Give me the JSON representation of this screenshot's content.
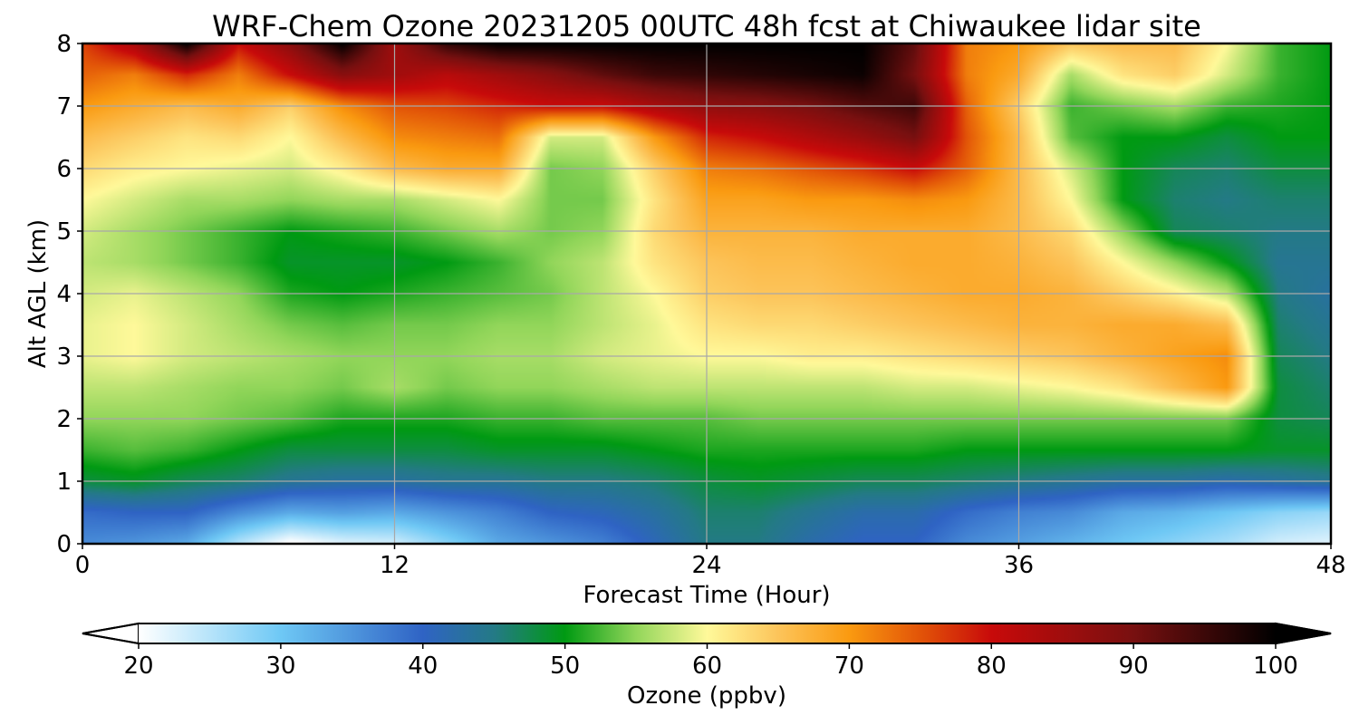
{
  "chart_data": {
    "type": "heatmap",
    "title": "WRF-Chem Ozone  20231205 00UTC 48h fcst at Chiwaukee lidar site",
    "xlabel": "Forecast Time (Hour)",
    "ylabel": "Alt AGL (km)",
    "xlim": [
      0,
      48
    ],
    "ylim": [
      0,
      8
    ],
    "xticks": [
      0,
      12,
      24,
      36,
      48
    ],
    "yticks": [
      0,
      1,
      2,
      3,
      4,
      5,
      6,
      7,
      8
    ],
    "grid": true,
    "colorbar": {
      "label": "Ozone  (ppbv)",
      "range": [
        20,
        100
      ],
      "ticks": [
        20,
        30,
        40,
        50,
        60,
        70,
        80,
        90,
        100
      ],
      "extend": "both",
      "orientation": "horizontal",
      "placement": "bottom",
      "colors": [
        {
          "v": 20,
          "c": "#ffffff"
        },
        {
          "v": 30,
          "c": "#6ec8f5"
        },
        {
          "v": 40,
          "c": "#2f63c4"
        },
        {
          "v": 45,
          "c": "#247a86"
        },
        {
          "v": 50,
          "c": "#009a12"
        },
        {
          "v": 55,
          "c": "#92d65a"
        },
        {
          "v": 60,
          "c": "#fff99a"
        },
        {
          "v": 65,
          "c": "#fcc45a"
        },
        {
          "v": 70,
          "c": "#fa9a10"
        },
        {
          "v": 75,
          "c": "#e25408"
        },
        {
          "v": 80,
          "c": "#c80a0a"
        },
        {
          "v": 90,
          "c": "#781010"
        },
        {
          "v": 100,
          "c": "#000000"
        }
      ]
    },
    "x": [
      0,
      2,
      4,
      6,
      8,
      10,
      12,
      14,
      16,
      18,
      20,
      22,
      24,
      26,
      28,
      30,
      32,
      34,
      36,
      38,
      40,
      42,
      44,
      46,
      48
    ],
    "y": [
      0,
      0.5,
      1,
      1.5,
      2,
      2.5,
      3,
      3.5,
      4,
      4.5,
      5,
      5.5,
      6,
      6.5,
      7,
      7.5,
      8
    ],
    "z": [
      [
        36,
        35,
        33,
        25,
        19,
        22,
        23,
        28,
        33,
        35,
        37,
        41,
        45,
        45,
        42,
        40,
        40,
        36,
        34,
        32,
        30,
        28,
        26,
        23,
        22
      ],
      [
        39,
        40,
        40,
        36,
        33,
        34,
        33,
        35,
        37,
        40,
        41,
        43,
        46,
        46,
        44,
        42,
        42,
        39,
        37,
        36,
        33,
        32,
        30,
        28,
        27
      ],
      [
        48,
        49,
        47,
        46,
        44,
        43,
        43,
        44,
        44,
        45,
        45,
        46,
        48,
        49,
        48,
        47,
        47,
        46,
        45,
        44,
        43,
        43,
        42,
        43,
        44
      ],
      [
        52,
        53,
        52,
        50,
        48,
        48,
        48,
        48,
        49,
        49,
        49,
        50,
        51,
        51,
        51,
        51,
        51,
        50,
        50,
        50,
        50,
        50,
        50,
        49,
        49
      ],
      [
        55,
        55,
        55,
        54,
        53,
        51,
        51,
        51,
        52,
        52,
        53,
        53,
        53,
        54,
        54,
        54,
        54,
        54,
        54,
        54,
        54,
        54,
        54,
        48,
        47
      ],
      [
        57,
        57,
        56,
        55,
        55,
        54,
        56,
        54,
        55,
        55,
        56,
        57,
        57,
        57,
        57,
        57,
        58,
        58,
        59,
        60,
        62,
        66,
        70,
        48,
        46
      ],
      [
        59,
        60,
        58,
        57,
        56,
        55,
        55,
        55,
        56,
        56,
        58,
        59,
        60,
        60,
        61,
        61,
        62,
        63,
        64,
        65,
        67,
        69,
        71,
        47,
        45
      ],
      [
        59,
        60,
        58,
        56,
        54,
        53,
        54,
        54,
        55,
        55,
        57,
        59,
        62,
        63,
        63,
        64,
        65,
        66,
        67,
        67,
        68,
        68,
        66,
        46,
        44
      ],
      [
        58,
        59,
        57,
        55,
        51,
        50,
        51,
        52,
        53,
        54,
        57,
        60,
        64,
        65,
        65,
        66,
        67,
        68,
        68,
        67,
        64,
        61,
        57,
        45,
        43
      ],
      [
        57,
        56,
        54,
        52,
        49,
        49,
        49,
        50,
        52,
        55,
        57,
        62,
        65,
        66,
        66,
        67,
        68,
        68,
        67,
        65,
        60,
        55,
        50,
        44,
        44
      ],
      [
        58,
        56,
        54,
        52,
        50,
        51,
        52,
        54,
        56,
        54,
        55,
        63,
        67,
        67,
        67,
        68,
        68,
        68,
        66,
        63,
        55,
        47,
        46,
        45,
        45
      ],
      [
        60,
        58,
        56,
        56,
        55,
        56,
        56,
        58,
        60,
        54,
        54,
        62,
        69,
        69,
        70,
        70,
        71,
        70,
        66,
        60,
        50,
        46,
        45,
        46,
        46
      ],
      [
        63,
        61,
        60,
        59,
        58,
        61,
        66,
        68,
        68,
        54,
        55,
        64,
        72,
        73,
        75,
        77,
        80,
        74,
        66,
        58,
        50,
        47,
        46,
        48,
        48
      ],
      [
        66,
        64,
        62,
        63,
        60,
        66,
        71,
        72,
        73,
        58,
        58,
        70,
        78,
        80,
        83,
        86,
        90,
        75,
        66,
        53,
        50,
        50,
        48,
        50,
        50
      ],
      [
        70,
        68,
        66,
        68,
        64,
        71,
        75,
        76,
        78,
        80,
        80,
        84,
        87,
        88,
        90,
        93,
        95,
        74,
        64,
        52,
        54,
        56,
        52,
        51,
        50
      ],
      [
        74,
        72,
        78,
        72,
        80,
        88,
        85,
        82,
        85,
        88,
        92,
        95,
        96,
        97,
        98,
        99,
        90,
        72,
        68,
        56,
        62,
        64,
        58,
        52,
        50
      ],
      [
        76,
        84,
        100,
        80,
        88,
        100,
        85,
        96,
        100,
        100,
        100,
        100,
        100,
        100,
        100,
        100,
        92,
        72,
        70,
        65,
        66,
        66,
        60,
        52,
        50
      ]
    ]
  }
}
